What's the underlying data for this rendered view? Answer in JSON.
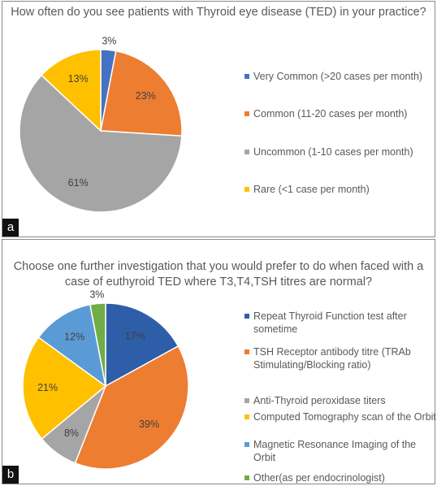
{
  "chart_data": [
    {
      "type": "pie",
      "panel_label": "a",
      "title": "How often do you see patients with Thyroid eye disease (TED) in your practice?",
      "categories": [
        "Very Common (>20 cases per month)",
        "Common (11-20 cases per month)",
        "Uncommon (1-10 cases per month)",
        "Rare (<1 case per month)"
      ],
      "values": [
        3,
        23,
        61,
        13
      ],
      "labels": [
        "3%",
        "23%",
        "61%",
        "13%"
      ],
      "colors": [
        "#4472c4",
        "#ed7d31",
        "#a5a5a5",
        "#ffc000"
      ],
      "legend": "right"
    },
    {
      "type": "pie",
      "panel_label": "b",
      "title": "Choose one further investigation that you would prefer to do when faced with a case of euthyroid TED where T3,T4,TSH titres are normal?",
      "categories": [
        "Repeat Thyroid Function test after sometime",
        "TSH Receptor antibody titre (TRAb Stimulating/Blocking ratio)",
        "Anti-Thyroid peroxidase titers",
        "Computed Tomography scan of the Orbit",
        "Magnetic Resonance Imaging of the Orbit",
        "Other(as per endocrinologist)"
      ],
      "values": [
        17,
        39,
        8,
        21,
        12,
        3
      ],
      "labels": [
        "17%",
        "39%",
        "8%",
        "21%",
        "12%",
        "3%"
      ],
      "colors": [
        "#2e5ea8",
        "#ed7d31",
        "#a5a5a5",
        "#ffc000",
        "#5b9bd5",
        "#70ad47"
      ],
      "legend": "right"
    }
  ]
}
